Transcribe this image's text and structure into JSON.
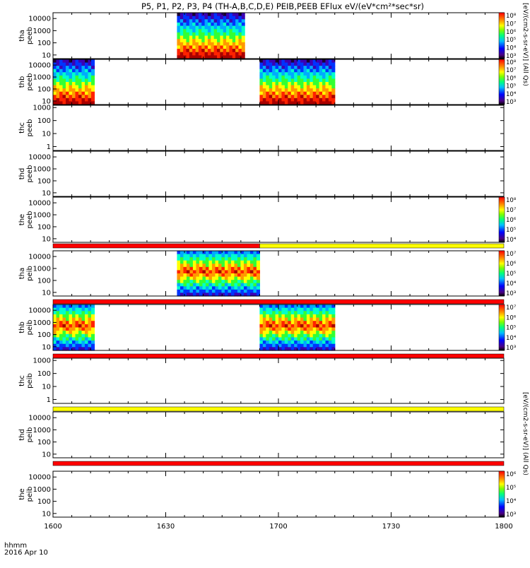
{
  "title": "P5, P1, P2, P3, P4 (TH-A,B,C,D,E) PEIB,PEEB EFlux eV/(eV*cm²*sec*sr)",
  "colorbar_top_label": "[eV/(cm2-s-sr-eV)] (All Qs)",
  "colorbar_bottom_label": "[eV/(cm2-s-sr-eV)] (All Qs)",
  "time_axis": {
    "unit_label": "hhmm",
    "date_label": "2016 Apr 10",
    "ticks": [
      "1600",
      "1630",
      "1700",
      "1730",
      "1800"
    ]
  },
  "colormap": [
    "#1a0033",
    "#3b00b4",
    "#0033ff",
    "#00aaff",
    "#00ffcc",
    "#33ff33",
    "#ffff00",
    "#ff9900",
    "#ff2200",
    "#aa0000"
  ],
  "chart_data": [
    {
      "type": "heatmap",
      "name": "tha-peeb",
      "ylabel": [
        "tha",
        "peeb"
      ],
      "yticks": [
        "10",
        "100",
        "1000",
        "10000"
      ],
      "ylim": [
        5,
        30000
      ],
      "y_scale": "log",
      "xlim": [
        0,
        120
      ],
      "x_unit": "minutes after 1600",
      "blocks": [
        {
          "x": [
            33,
            51
          ],
          "profile": "peeb"
        }
      ],
      "colorbar": {
        "ticks": [
          "10³",
          "10⁴",
          "10⁵",
          "10⁶",
          "10⁷",
          "10⁸"
        ]
      },
      "flag_bar": null
    },
    {
      "type": "heatmap",
      "name": "thb-peeb",
      "ylabel": [
        "thb",
        "peeb"
      ],
      "yticks": [
        "10",
        "100",
        "1000",
        "10000"
      ],
      "ylim": [
        5,
        30000
      ],
      "y_scale": "log",
      "xlim": [
        0,
        120
      ],
      "blocks": [
        {
          "x": [
            0,
            11
          ],
          "profile": "peeb"
        },
        {
          "x": [
            55,
            75
          ],
          "profile": "peeb"
        }
      ],
      "colorbar": {
        "ticks": [
          "10³",
          "10⁴",
          "10⁵",
          "10⁶",
          "10⁷",
          "10⁸"
        ]
      },
      "flag_bar": null
    },
    {
      "type": "heatmap",
      "name": "thc-peeb",
      "ylabel": [
        "thc",
        "peeb"
      ],
      "yticks": [
        "1",
        "10",
        "100",
        "1000"
      ],
      "ylim": [
        0.5,
        1500
      ],
      "y_scale": "log",
      "xlim": [
        0,
        120
      ],
      "blocks": [],
      "colorbar": null,
      "flag_bar": null
    },
    {
      "type": "heatmap",
      "name": "thd-peeb",
      "ylabel": [
        "thd",
        "peeb"
      ],
      "yticks": [
        "10",
        "100",
        "1000",
        "10000"
      ],
      "ylim": [
        5,
        30000
      ],
      "y_scale": "log",
      "xlim": [
        0,
        120
      ],
      "blocks": [],
      "colorbar": null,
      "flag_bar": null
    },
    {
      "type": "heatmap",
      "name": "the-peeb",
      "ylabel": [
        "the",
        "peeb"
      ],
      "yticks": [
        "10",
        "100",
        "1000",
        "10000"
      ],
      "ylim": [
        5,
        30000
      ],
      "y_scale": "log",
      "xlim": [
        0,
        120
      ],
      "blocks": [],
      "colorbar": {
        "ticks": [
          "10⁴",
          "10⁵",
          "10⁶",
          "10⁷",
          "10⁸"
        ]
      },
      "flag_bar": [
        {
          "x": [
            0,
            55
          ],
          "color": "#ff0000"
        },
        {
          "x": [
            55,
            120
          ],
          "color": "#ffff00"
        }
      ]
    },
    {
      "type": "heatmap",
      "name": "tha-peib",
      "ylabel": [
        "tha",
        "peib"
      ],
      "yticks": [
        "10",
        "100",
        "1000",
        "10000"
      ],
      "ylim": [
        5,
        30000
      ],
      "y_scale": "log",
      "xlim": [
        0,
        120
      ],
      "blocks": [
        {
          "x": [
            33,
            55
          ],
          "profile": "peib"
        }
      ],
      "colorbar": {
        "ticks": [
          "10³",
          "10⁴",
          "10⁵",
          "10⁶",
          "10⁷"
        ]
      },
      "flag_bar": [
        {
          "x": [
            0,
            120
          ],
          "color": "#ff0000"
        }
      ]
    },
    {
      "type": "heatmap",
      "name": "thb-peib",
      "ylabel": [
        "thb",
        "peib"
      ],
      "yticks": [
        "10",
        "100",
        "1000",
        "10000"
      ],
      "ylim": [
        5,
        30000
      ],
      "y_scale": "log",
      "xlim": [
        0,
        120
      ],
      "blocks": [
        {
          "x": [
            0,
            11
          ],
          "profile": "peib"
        },
        {
          "x": [
            55,
            75
          ],
          "profile": "peib"
        }
      ],
      "colorbar": {
        "ticks": [
          "10³",
          "10⁴",
          "10⁵",
          "10⁶",
          "10⁷"
        ]
      },
      "flag_bar": [
        {
          "x": [
            0,
            120
          ],
          "color": "#ff0000"
        }
      ]
    },
    {
      "type": "heatmap",
      "name": "thc-peib",
      "ylabel": [
        "thc",
        "peib"
      ],
      "yticks": [
        "1",
        "10",
        "100",
        "1000"
      ],
      "ylim": [
        0.5,
        1500
      ],
      "y_scale": "log",
      "xlim": [
        0,
        120
      ],
      "blocks": [],
      "colorbar": null,
      "flag_bar": [
        {
          "x": [
            0,
            120
          ],
          "color": "#ffff00"
        }
      ]
    },
    {
      "type": "heatmap",
      "name": "thd-peib",
      "ylabel": [
        "thd",
        "peib"
      ],
      "yticks": [
        "10",
        "100",
        "1000",
        "10000"
      ],
      "ylim": [
        5,
        30000
      ],
      "y_scale": "log",
      "xlim": [
        0,
        120
      ],
      "blocks": [],
      "colorbar": null,
      "flag_bar": [
        {
          "x": [
            0,
            120
          ],
          "color": "#ff0000"
        }
      ]
    },
    {
      "type": "heatmap",
      "name": "the-peib",
      "ylabel": [
        "the",
        "peib"
      ],
      "yticks": [
        "10",
        "100",
        "1000",
        "10000"
      ],
      "ylim": [
        5,
        30000
      ],
      "y_scale": "log",
      "xlim": [
        0,
        120
      ],
      "blocks": [],
      "colorbar": {
        "ticks": [
          "10³",
          "10⁴",
          "10⁵",
          "10⁶"
        ]
      },
      "flag_bar": null
    }
  ]
}
